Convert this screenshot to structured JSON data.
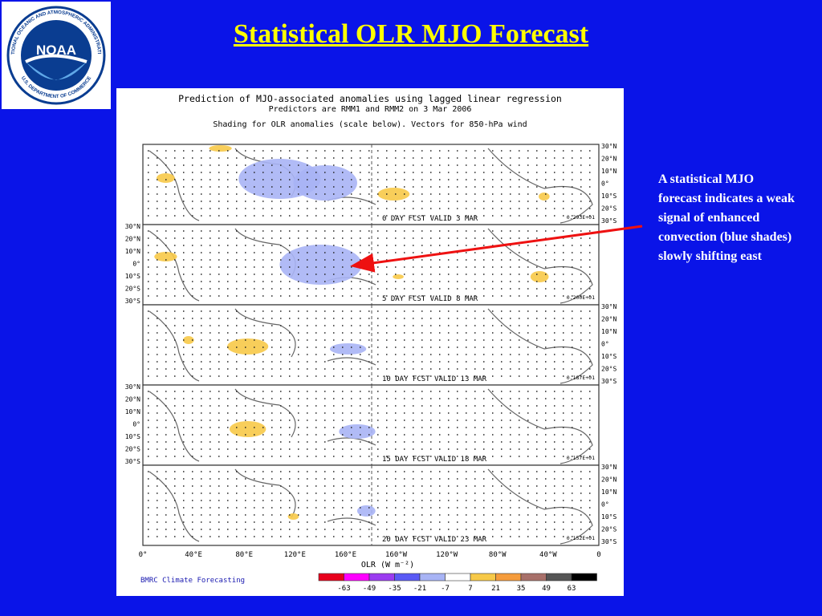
{
  "slide": {
    "title": "Statistical OLR MJO Forecast",
    "callout": "A statistical MJO forecast indicates a weak signal of enhanced convection (blue shades) slowly shifting east"
  },
  "logo": {
    "text": "NOAA",
    "ring_text_top": "NATIONAL OCEANIC AND ATMOSPHERIC ADMINISTRATION",
    "ring_text_bottom": "U.S. DEPARTMENT OF COMMERCE"
  },
  "figure": {
    "title": "Prediction of MJO-associated anomalies using lagged linear regression",
    "predictors": "Predictors are RMM1 and RMM2 on  3 Mar 2006",
    "shading": "Shading for OLR anomalies (scale below). Vectors for 850-hPa wind",
    "panels": [
      {
        "label": "0 DAY FCST VALID  3 MAR",
        "ref": "0.293E+01"
      },
      {
        "label": "5 DAY FCST VALID  8 MAR",
        "ref": "0.200E+01"
      },
      {
        "label": "10 DAY FCST VALID 13 MAR",
        "ref": "0.187E+01"
      },
      {
        "label": "15 DAY FCST VALID 18 MAR",
        "ref": "0.157E+01"
      },
      {
        "label": "20 DAY FCST VALID 23 MAR",
        "ref": "0.152E+01"
      }
    ],
    "lat_labels": [
      "30°N",
      "20°N",
      "10°N",
      "0°",
      "10°S",
      "20°S",
      "30°S"
    ],
    "lon_labels": [
      "0°",
      "40°E",
      "80°E",
      "120°E",
      "160°E",
      "160°W",
      "120°W",
      "80°W",
      "40°W",
      "0"
    ],
    "colorbar": {
      "label": "OLR (W m⁻²)",
      "ticks": [
        "-63",
        "-49",
        "-35",
        "-21",
        "-7",
        "7",
        "21",
        "35",
        "49",
        "63"
      ],
      "colors": [
        "#e8001c",
        "#ff00ff",
        "#9b3cf0",
        "#5a5af5",
        "#a8b4f5",
        "#ffffff",
        "#f7c948",
        "#f59c3c",
        "#a8706a",
        "#555555",
        "#000000"
      ]
    },
    "credit": "BMRC Climate Forecasting"
  },
  "colors": {
    "background": "#0a14e8",
    "title": "#ffff00",
    "callout": "#ffffff",
    "arrow": "#ee1111",
    "negative_anomaly": "#a8b4f5",
    "positive_anomaly": "#f7c948"
  }
}
